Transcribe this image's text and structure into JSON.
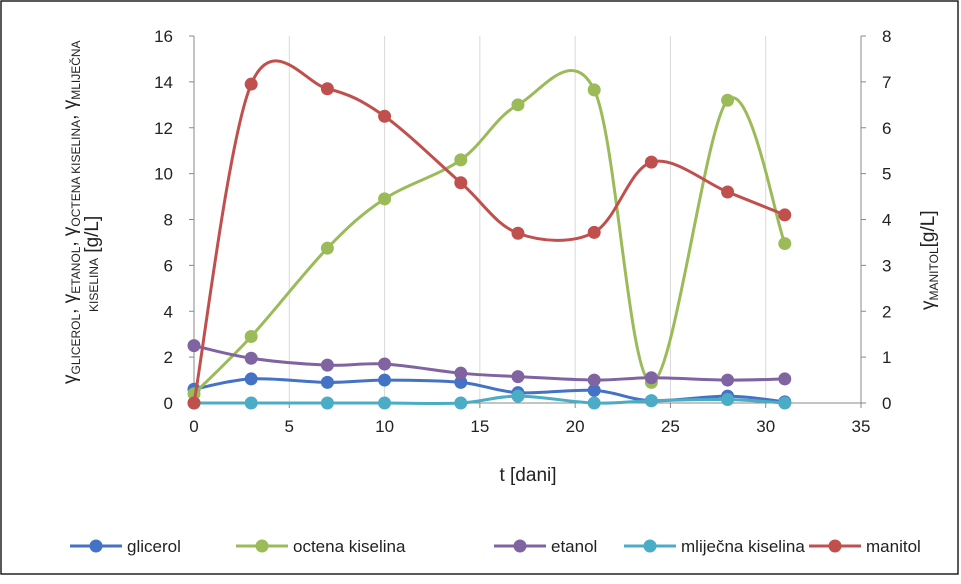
{
  "chart_data": {
    "type": "line",
    "xlabel": "t [dani]",
    "ylabel_left": "γGLICEROL, γETANOL, γOCTENA KISELINA, γMLIJEČNA KISELINA [g/L]",
    "ylabel_left_parts": {
      "gamma": "γ",
      "sub1": "GLICEROL",
      "sep": ", ",
      "sub2": "ETANOL",
      "sub3": "OCTENA KISELINA",
      "sub4": "MLIJEČNA",
      "sub4b": "KISELINA",
      "unit": " [g/L]"
    },
    "ylabel_right": "γMANITOL[g/L]",
    "ylabel_right_parts": {
      "gamma": "γ",
      "sub": "MANITOL",
      "unit": "[g/L]"
    },
    "xlim": [
      0,
      35
    ],
    "xticks": [
      "0",
      "5",
      "10",
      "15",
      "20",
      "25",
      "30",
      "35"
    ],
    "ylim_left": [
      0,
      16
    ],
    "yticks_left": [
      "0",
      "2",
      "4",
      "6",
      "8",
      "10",
      "12",
      "14",
      "16"
    ],
    "ylim_right": [
      0,
      8
    ],
    "yticks_right": [
      "0",
      "1",
      "2",
      "3",
      "4",
      "5",
      "6",
      "7",
      "8"
    ],
    "grid": "vertical",
    "legend_position": "bottom",
    "series": [
      {
        "name": "glicerol",
        "axis": "left",
        "color": "#4472c4",
        "x": [
          0,
          3,
          7,
          10,
          14,
          17,
          21,
          24,
          28,
          31
        ],
        "y": [
          0.6,
          1.05,
          0.9,
          1.0,
          0.9,
          0.45,
          0.55,
          0.1,
          0.3,
          0.05
        ]
      },
      {
        "name": "octena kiselina",
        "axis": "left",
        "color": "#9bbb59",
        "x": [
          0,
          3,
          7,
          10,
          14,
          17,
          21,
          24,
          28,
          31
        ],
        "y": [
          0.4,
          2.9,
          6.75,
          8.9,
          10.6,
          13.0,
          13.65,
          0.9,
          13.2,
          6.95
        ]
      },
      {
        "name": "etanol",
        "axis": "left",
        "color": "#8064a2",
        "x": [
          0,
          3,
          7,
          10,
          14,
          17,
          21,
          24,
          28,
          31
        ],
        "y": [
          2.5,
          1.95,
          1.65,
          1.7,
          1.3,
          1.15,
          1.0,
          1.1,
          1.0,
          1.05
        ]
      },
      {
        "name": "mliječna kiselina",
        "axis": "left",
        "color": "#4bacc6",
        "x": [
          0,
          3,
          7,
          10,
          14,
          17,
          21,
          24,
          28,
          31
        ],
        "y": [
          0.0,
          0.0,
          0.0,
          0.0,
          0.0,
          0.3,
          0.0,
          0.1,
          0.15,
          0.0
        ]
      },
      {
        "name": "manitol",
        "axis": "right",
        "color": "#c0504d",
        "x": [
          0,
          3,
          7,
          10,
          14,
          17,
          21,
          24,
          28,
          31
        ],
        "y": [
          0.0,
          6.95,
          6.85,
          6.25,
          4.8,
          3.7,
          3.72,
          5.25,
          4.6,
          4.1
        ]
      }
    ]
  }
}
